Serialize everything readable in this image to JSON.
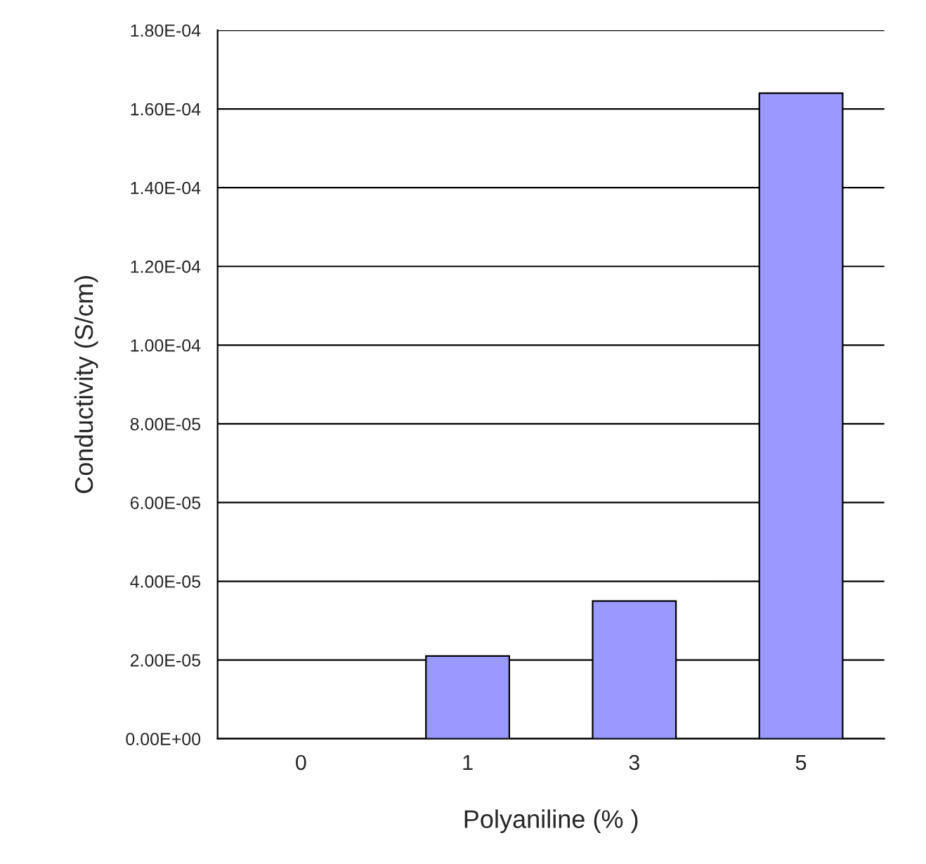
{
  "chart_data": {
    "type": "bar",
    "xlabel": "Polyaniline (% )",
    "ylabel": "Conductivity (S/cm)",
    "categories": [
      "0",
      "1",
      "3",
      "5"
    ],
    "values": [
      null,
      2.1e-05,
      3.5e-05,
      0.000164
    ],
    "color": "#9999ff",
    "ylim": [
      0,
      0.00018
    ],
    "yticks": [
      {
        "value": 0,
        "label": "0.00E+00"
      },
      {
        "value": 2e-05,
        "label": "2.00E-05"
      },
      {
        "value": 4e-05,
        "label": "4.00E-05"
      },
      {
        "value": 6e-05,
        "label": "6.00E-05"
      },
      {
        "value": 8e-05,
        "label": "8.00E-05"
      },
      {
        "value": 0.0001,
        "label": "1.00E-04"
      },
      {
        "value": 0.00012,
        "label": "1.20E-04"
      },
      {
        "value": 0.00014,
        "label": "1.40E-04"
      },
      {
        "value": 0.00016,
        "label": "1.60E-04"
      },
      {
        "value": 0.00018,
        "label": "1.80E-04"
      }
    ],
    "grid": "y"
  }
}
